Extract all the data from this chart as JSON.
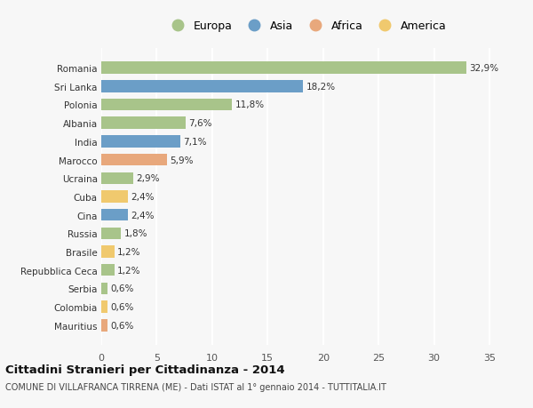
{
  "categories": [
    "Mauritius",
    "Colombia",
    "Serbia",
    "Repubblica Ceca",
    "Brasile",
    "Russia",
    "Cina",
    "Cuba",
    "Ucraina",
    "Marocco",
    "India",
    "Albania",
    "Polonia",
    "Sri Lanka",
    "Romania"
  ],
  "values": [
    0.6,
    0.6,
    0.6,
    1.2,
    1.2,
    1.8,
    2.4,
    2.4,
    2.9,
    5.9,
    7.1,
    7.6,
    11.8,
    18.2,
    32.9
  ],
  "labels": [
    "0,6%",
    "0,6%",
    "0,6%",
    "1,2%",
    "1,2%",
    "1,8%",
    "2,4%",
    "2,4%",
    "2,9%",
    "5,9%",
    "7,1%",
    "7,6%",
    "11,8%",
    "18,2%",
    "32,9%"
  ],
  "colors": [
    "#e8a87c",
    "#f0c96e",
    "#a8c48a",
    "#a8c48a",
    "#f0c96e",
    "#a8c48a",
    "#6b9ec7",
    "#f0c96e",
    "#a8c48a",
    "#e8a87c",
    "#6b9ec7",
    "#a8c48a",
    "#a8c48a",
    "#6b9ec7",
    "#a8c48a"
  ],
  "legend_labels": [
    "Europa",
    "Asia",
    "Africa",
    "America"
  ],
  "legend_colors": [
    "#a8c48a",
    "#6b9ec7",
    "#e8a87c",
    "#f0c96e"
  ],
  "title": "Cittadini Stranieri per Cittadinanza - 2014",
  "subtitle": "COMUNE DI VILLAFRANCA TIRRENA (ME) - Dati ISTAT al 1° gennaio 2014 - TUTTITALIA.IT",
  "xlim": [
    0,
    37
  ],
  "xticks": [
    0,
    5,
    10,
    15,
    20,
    25,
    30,
    35
  ],
  "bg_color": "#f7f7f7",
  "grid_color": "#ffffff",
  "bar_height": 0.65
}
